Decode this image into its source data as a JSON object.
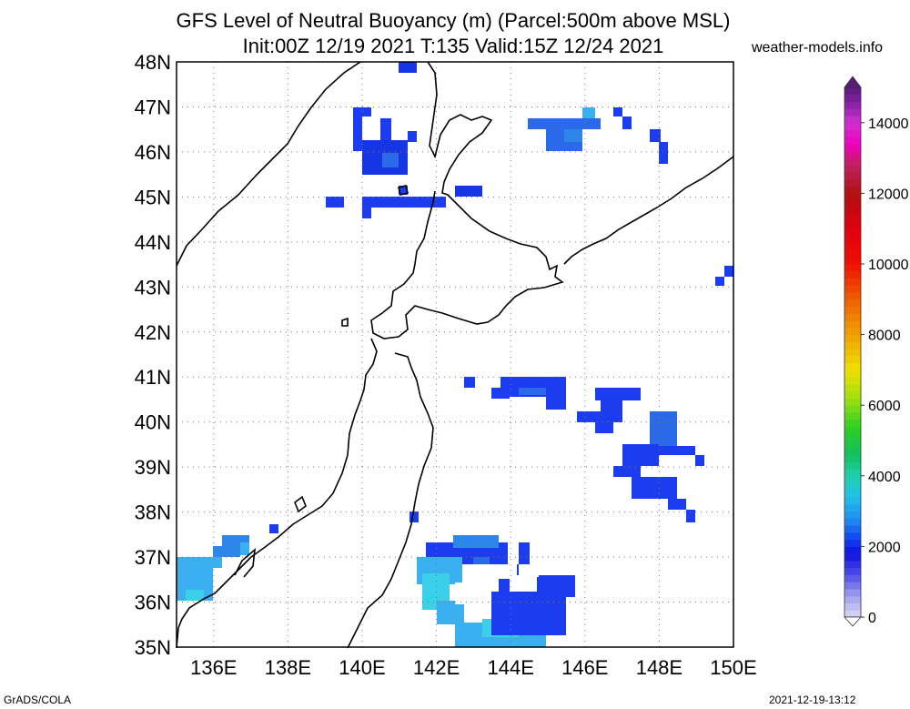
{
  "title_line1": "GFS Level of Neutral Buoyancy (m) (Parcel:500m above MSL)",
  "title_line2": "Init:00Z 12/19 2021 T:135 Valid:15Z 12/24 2021",
  "site": "weather-models.info",
  "footer_left": "GrADS/COLA",
  "footer_right": "2021-12-19-13:12",
  "map": {
    "lon_range": [
      135,
      150
    ],
    "lat_range": [
      35,
      48
    ],
    "lat_ticks": [
      "35N",
      "36N",
      "37N",
      "38N",
      "39N",
      "40N",
      "41N",
      "42N",
      "43N",
      "44N",
      "45N",
      "46N",
      "47N",
      "48N"
    ],
    "lon_ticks": [
      "136E",
      "138E",
      "140E",
      "142E",
      "144E",
      "146E",
      "148E",
      "150E"
    ],
    "grid": true
  },
  "colorbar": {
    "ticks": [
      "0",
      "2000",
      "4000",
      "6000",
      "8000",
      "10000",
      "12000",
      "14000"
    ],
    "range": [
      0,
      15000
    ]
  }
}
